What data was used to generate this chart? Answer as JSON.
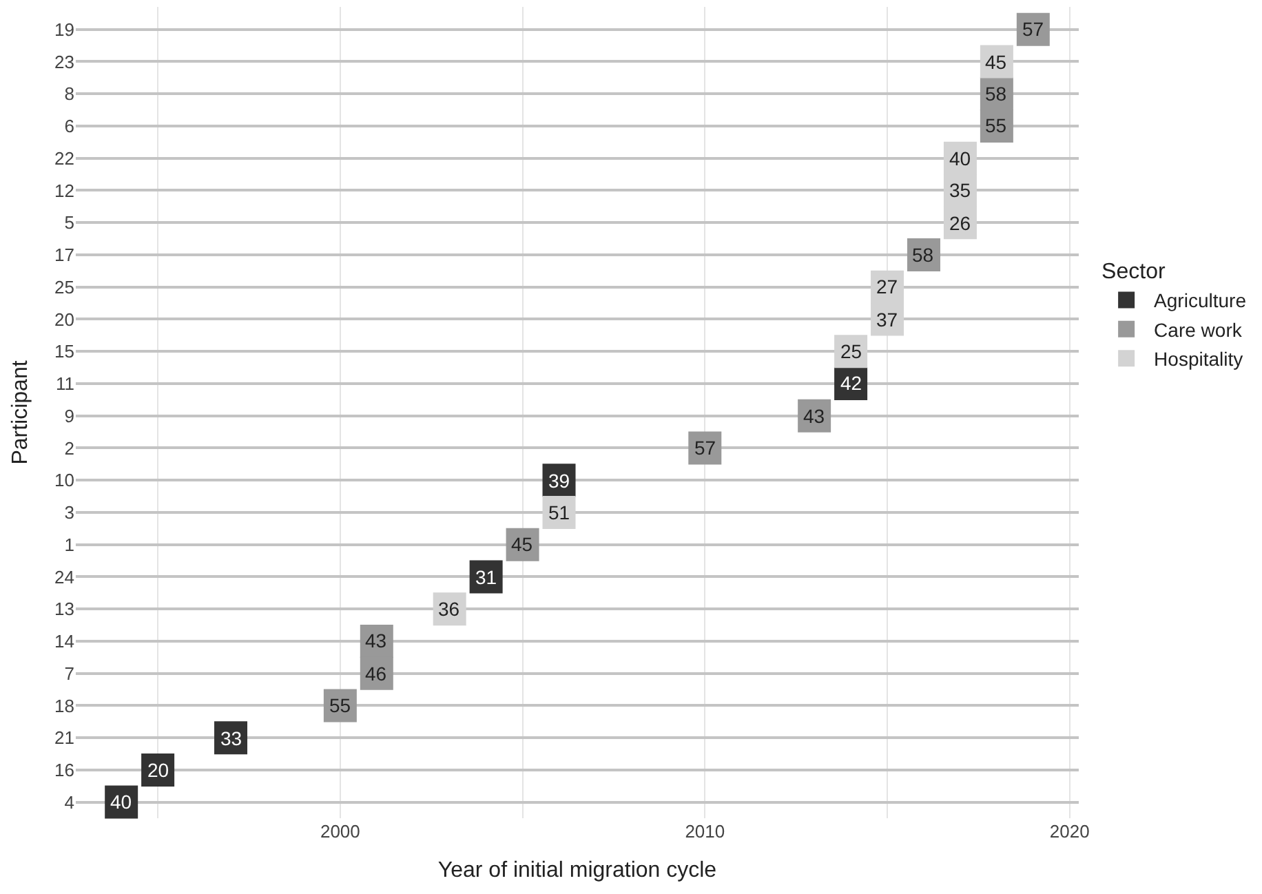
{
  "chart_data": {
    "type": "scatter",
    "orientation": "horizontal",
    "xlabel": "Year of initial migration cycle",
    "ylabel": "Participant",
    "legend_title": "Sector",
    "legend": "right",
    "grid": true,
    "marker": "square",
    "categories": [
      "19",
      "23",
      "8",
      "6",
      "22",
      "12",
      "5",
      "17",
      "25",
      "20",
      "15",
      "11",
      "9",
      "2",
      "10",
      "3",
      "1",
      "24",
      "13",
      "14",
      "7",
      "18",
      "21",
      "16",
      "4"
    ],
    "xlim": [
      1992.75,
      2020.25
    ],
    "xticks": [
      {
        "value": 1995,
        "label": null
      },
      2000,
      {
        "value": 2005,
        "label": null
      },
      2010,
      {
        "value": 2015,
        "label": null
      },
      2020
    ],
    "series": [
      {
        "name": "Agriculture",
        "color": "#333333",
        "values": [
          null,
          null,
          null,
          null,
          null,
          null,
          null,
          null,
          null,
          null,
          null,
          2014,
          null,
          null,
          2006,
          null,
          null,
          2004,
          null,
          null,
          null,
          null,
          1997,
          1995,
          1994
        ]
      },
      {
        "name": "Care work",
        "color": "#999999",
        "values": [
          2019,
          null,
          2018,
          2018,
          null,
          null,
          null,
          2016,
          null,
          null,
          null,
          null,
          2013,
          2010,
          null,
          null,
          2005,
          null,
          null,
          2001,
          2001,
          2000,
          null,
          null,
          null
        ]
      },
      {
        "name": "Hospitality",
        "color": "#d3d3d3",
        "values": [
          null,
          2018,
          null,
          null,
          2017,
          2017,
          2017,
          null,
          2015,
          2015,
          2014,
          null,
          null,
          null,
          null,
          2006,
          null,
          null,
          2003,
          null,
          null,
          null,
          null,
          null,
          null
        ]
      }
    ],
    "annotations": [
      {
        "text": "57",
        "x": 2019,
        "y": "19"
      },
      {
        "text": "45",
        "x": 2018,
        "y": "23"
      },
      {
        "text": "58",
        "x": 2018,
        "y": "8"
      },
      {
        "text": "55",
        "x": 2018,
        "y": "6"
      },
      {
        "text": "40",
        "x": 2017,
        "y": "22"
      },
      {
        "text": "35",
        "x": 2017,
        "y": "12"
      },
      {
        "text": "26",
        "x": 2017,
        "y": "5"
      },
      {
        "text": "58",
        "x": 2016,
        "y": "17"
      },
      {
        "text": "27",
        "x": 2015,
        "y": "25"
      },
      {
        "text": "37",
        "x": 2015,
        "y": "20"
      },
      {
        "text": "25",
        "x": 2014,
        "y": "15"
      },
      {
        "text": "42",
        "x": 2014,
        "y": "11"
      },
      {
        "text": "43",
        "x": 2013,
        "y": "9"
      },
      {
        "text": "57",
        "x": 2010,
        "y": "2"
      },
      {
        "text": "39",
        "x": 2006,
        "y": "10"
      },
      {
        "text": "51",
        "x": 2006,
        "y": "3"
      },
      {
        "text": "45",
        "x": 2005,
        "y": "1"
      },
      {
        "text": "31",
        "x": 2004,
        "y": "24"
      },
      {
        "text": "36",
        "x": 2003,
        "y": "13"
      },
      {
        "text": "43",
        "x": 2001,
        "y": "14"
      },
      {
        "text": "46",
        "x": 2001,
        "y": "7"
      },
      {
        "text": "55",
        "x": 2000,
        "y": "18"
      },
      {
        "text": "33",
        "x": 1997,
        "y": "21"
      },
      {
        "text": "20",
        "x": 1995,
        "y": "16"
      },
      {
        "text": "40",
        "x": 1994,
        "y": "4"
      }
    ]
  }
}
